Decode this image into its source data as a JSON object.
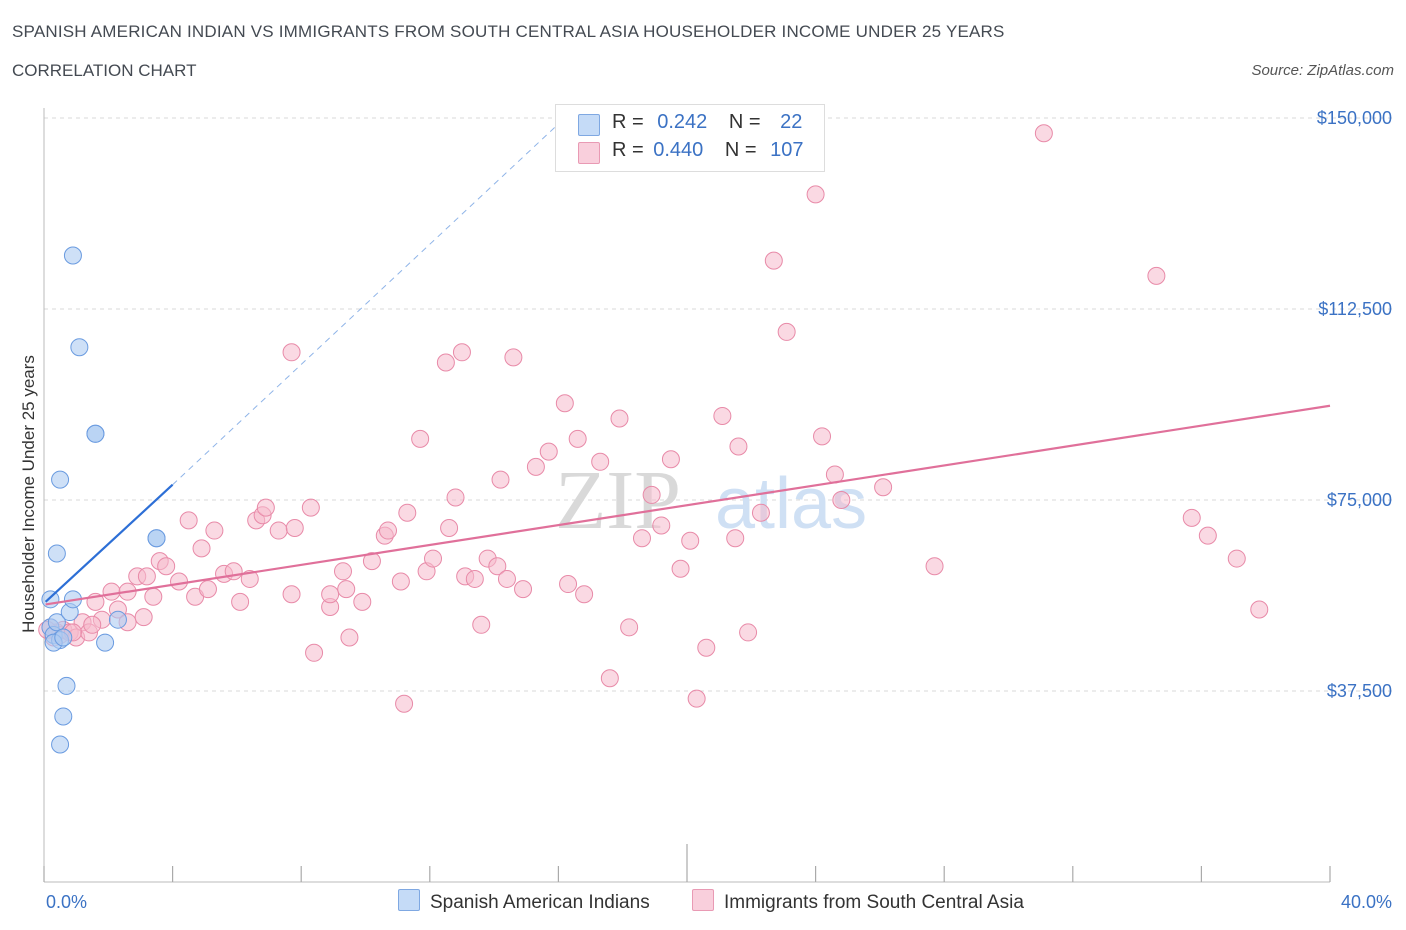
{
  "header": {
    "title": "SPANISH AMERICAN INDIAN VS IMMIGRANTS FROM SOUTH CENTRAL ASIA HOUSEHOLDER INCOME UNDER 25 YEARS",
    "subtitle": "CORRELATION CHART",
    "source": "Source: ZipAtlas.com"
  },
  "watermark": {
    "zip": "ZIP",
    "atlas": "atlas"
  },
  "legend": {
    "rows": [
      {
        "r_label": "R =",
        "r_value": "0.242",
        "n_label": "N =",
        "n_value": "22",
        "color": "#a8c8f0"
      },
      {
        "r_label": "R =",
        "r_value": "0.440",
        "n_label": "N =",
        "n_value": "107",
        "color": "#f5b8cc"
      }
    ]
  },
  "colors": {
    "blue_fill": "#aecbf2",
    "blue_stroke": "#6a9be0",
    "blue_line": "#2d6fd6",
    "pink_fill": "#f6b9cc",
    "pink_stroke": "#e88aa8",
    "pink_line": "#e0709a",
    "grid": "#d8d8d8",
    "tick_text": "#3b72c4"
  },
  "chart_data": {
    "type": "scatter",
    "title": "SPANISH AMERICAN INDIAN VS IMMIGRANTS FROM SOUTH CENTRAL ASIA HOUSEHOLDER INCOME UNDER 25 YEARS",
    "xlabel": "",
    "ylabel": "Householder Income Under 25 years",
    "xlim": [
      0,
      40
    ],
    "ylim": [
      0,
      150000
    ],
    "x_tick_labels": [
      "0.0%",
      "40.0%"
    ],
    "y_ticks": [
      37500,
      75000,
      112500,
      150000
    ],
    "y_tick_labels": [
      "$37,500",
      "$75,000",
      "$112,500",
      "$150,000"
    ],
    "grid": true,
    "legend_placement": "bottom",
    "series": [
      {
        "name": "Spanish American Indians",
        "r": 0.242,
        "n": 22,
        "points": [
          [
            0.2,
            50000
          ],
          [
            0.3,
            48500
          ],
          [
            0.4,
            51000
          ],
          [
            0.5,
            47500
          ],
          [
            0.2,
            55500
          ],
          [
            0.4,
            64500
          ],
          [
            0.5,
            79000
          ],
          [
            0.7,
            38500
          ],
          [
            0.6,
            32500
          ],
          [
            0.5,
            27000
          ],
          [
            0.8,
            53000
          ],
          [
            0.9,
            55500
          ],
          [
            0.9,
            123000
          ],
          [
            1.1,
            105000
          ],
          [
            1.6,
            88000
          ],
          [
            1.6,
            88000
          ],
          [
            1.9,
            47000
          ],
          [
            2.3,
            51500
          ],
          [
            3.5,
            67500
          ],
          [
            3.5,
            67500
          ],
          [
            0.3,
            47000
          ],
          [
            0.6,
            48000
          ]
        ],
        "trend": {
          "x_start": 0.05,
          "y_start": 55000,
          "x_end": 4.0,
          "y_end": 78000
        },
        "trend_dashed": {
          "x_start": 4.0,
          "y_start": 78000,
          "x_end": 16.2,
          "y_end": 150000
        }
      },
      {
        "name": "Immigrants from South Central Asia",
        "r": 0.44,
        "n": 107,
        "points": [
          [
            0.2,
            50000
          ],
          [
            0.3,
            48000
          ],
          [
            0.4,
            49000
          ],
          [
            0.5,
            48500
          ],
          [
            0.6,
            49500
          ],
          [
            0.8,
            49000
          ],
          [
            1.0,
            48000
          ],
          [
            1.2,
            51000
          ],
          [
            1.4,
            49000
          ],
          [
            1.6,
            55000
          ],
          [
            1.8,
            51500
          ],
          [
            2.1,
            57000
          ],
          [
            2.3,
            53500
          ],
          [
            2.6,
            51000
          ],
          [
            2.9,
            60000
          ],
          [
            3.1,
            52000
          ],
          [
            3.4,
            56000
          ],
          [
            3.6,
            63000
          ],
          [
            3.8,
            62000
          ],
          [
            4.2,
            59000
          ],
          [
            4.5,
            71000
          ],
          [
            4.7,
            56000
          ],
          [
            4.9,
            65500
          ],
          [
            5.1,
            57500
          ],
          [
            5.3,
            69000
          ],
          [
            5.6,
            60500
          ],
          [
            5.9,
            61000
          ],
          [
            6.1,
            55000
          ],
          [
            6.4,
            59500
          ],
          [
            6.6,
            71000
          ],
          [
            6.8,
            72000
          ],
          [
            6.9,
            73500
          ],
          [
            7.3,
            69000
          ],
          [
            7.7,
            56500
          ],
          [
            7.8,
            69500
          ],
          [
            7.7,
            104000
          ],
          [
            8.3,
            73500
          ],
          [
            8.4,
            45000
          ],
          [
            8.9,
            54000
          ],
          [
            8.9,
            56500
          ],
          [
            9.3,
            61000
          ],
          [
            9.4,
            57500
          ],
          [
            9.5,
            48000
          ],
          [
            9.9,
            55000
          ],
          [
            10.2,
            63000
          ],
          [
            10.6,
            68000
          ],
          [
            10.7,
            69000
          ],
          [
            11.1,
            59000
          ],
          [
            11.3,
            72500
          ],
          [
            11.2,
            35000
          ],
          [
            11.7,
            87000
          ],
          [
            11.9,
            61000
          ],
          [
            12.1,
            63500
          ],
          [
            12.5,
            102000
          ],
          [
            12.6,
            69500
          ],
          [
            12.8,
            75500
          ],
          [
            13.0,
            104000
          ],
          [
            13.1,
            60000
          ],
          [
            13.4,
            59500
          ],
          [
            13.6,
            50500
          ],
          [
            13.8,
            63500
          ],
          [
            14.1,
            62000
          ],
          [
            14.2,
            79000
          ],
          [
            14.4,
            59500
          ],
          [
            14.6,
            103000
          ],
          [
            14.9,
            57500
          ],
          [
            15.3,
            81500
          ],
          [
            15.7,
            84500
          ],
          [
            16.2,
            94000
          ],
          [
            16.3,
            58500
          ],
          [
            16.6,
            87000
          ],
          [
            16.8,
            56500
          ],
          [
            17.3,
            82500
          ],
          [
            17.6,
            40000
          ],
          [
            17.9,
            91000
          ],
          [
            18.2,
            50000
          ],
          [
            18.6,
            67500
          ],
          [
            18.9,
            76000
          ],
          [
            19.2,
            70000
          ],
          [
            19.5,
            83000
          ],
          [
            19.8,
            61500
          ],
          [
            20.1,
            67000
          ],
          [
            20.3,
            36000
          ],
          [
            20.6,
            46000
          ],
          [
            21.1,
            91500
          ],
          [
            21.5,
            67500
          ],
          [
            21.6,
            85500
          ],
          [
            21.9,
            49000
          ],
          [
            22.3,
            72500
          ],
          [
            22.7,
            122000
          ],
          [
            23.1,
            108000
          ],
          [
            24.0,
            135000
          ],
          [
            24.2,
            87500
          ],
          [
            24.6,
            80000
          ],
          [
            24.8,
            75000
          ],
          [
            26.1,
            77500
          ],
          [
            27.7,
            62000
          ],
          [
            31.1,
            147000
          ],
          [
            34.6,
            119000
          ],
          [
            35.7,
            71500
          ],
          [
            36.2,
            68000
          ],
          [
            37.1,
            63500
          ],
          [
            37.8,
            53500
          ],
          [
            0.1,
            49500
          ],
          [
            0.9,
            49000
          ],
          [
            1.5,
            50500
          ],
          [
            2.6,
            57000
          ],
          [
            3.2,
            60000
          ]
        ],
        "trend": {
          "x_start": 0.05,
          "y_start": 54500,
          "x_end": 40.0,
          "y_end": 93500
        }
      }
    ]
  }
}
